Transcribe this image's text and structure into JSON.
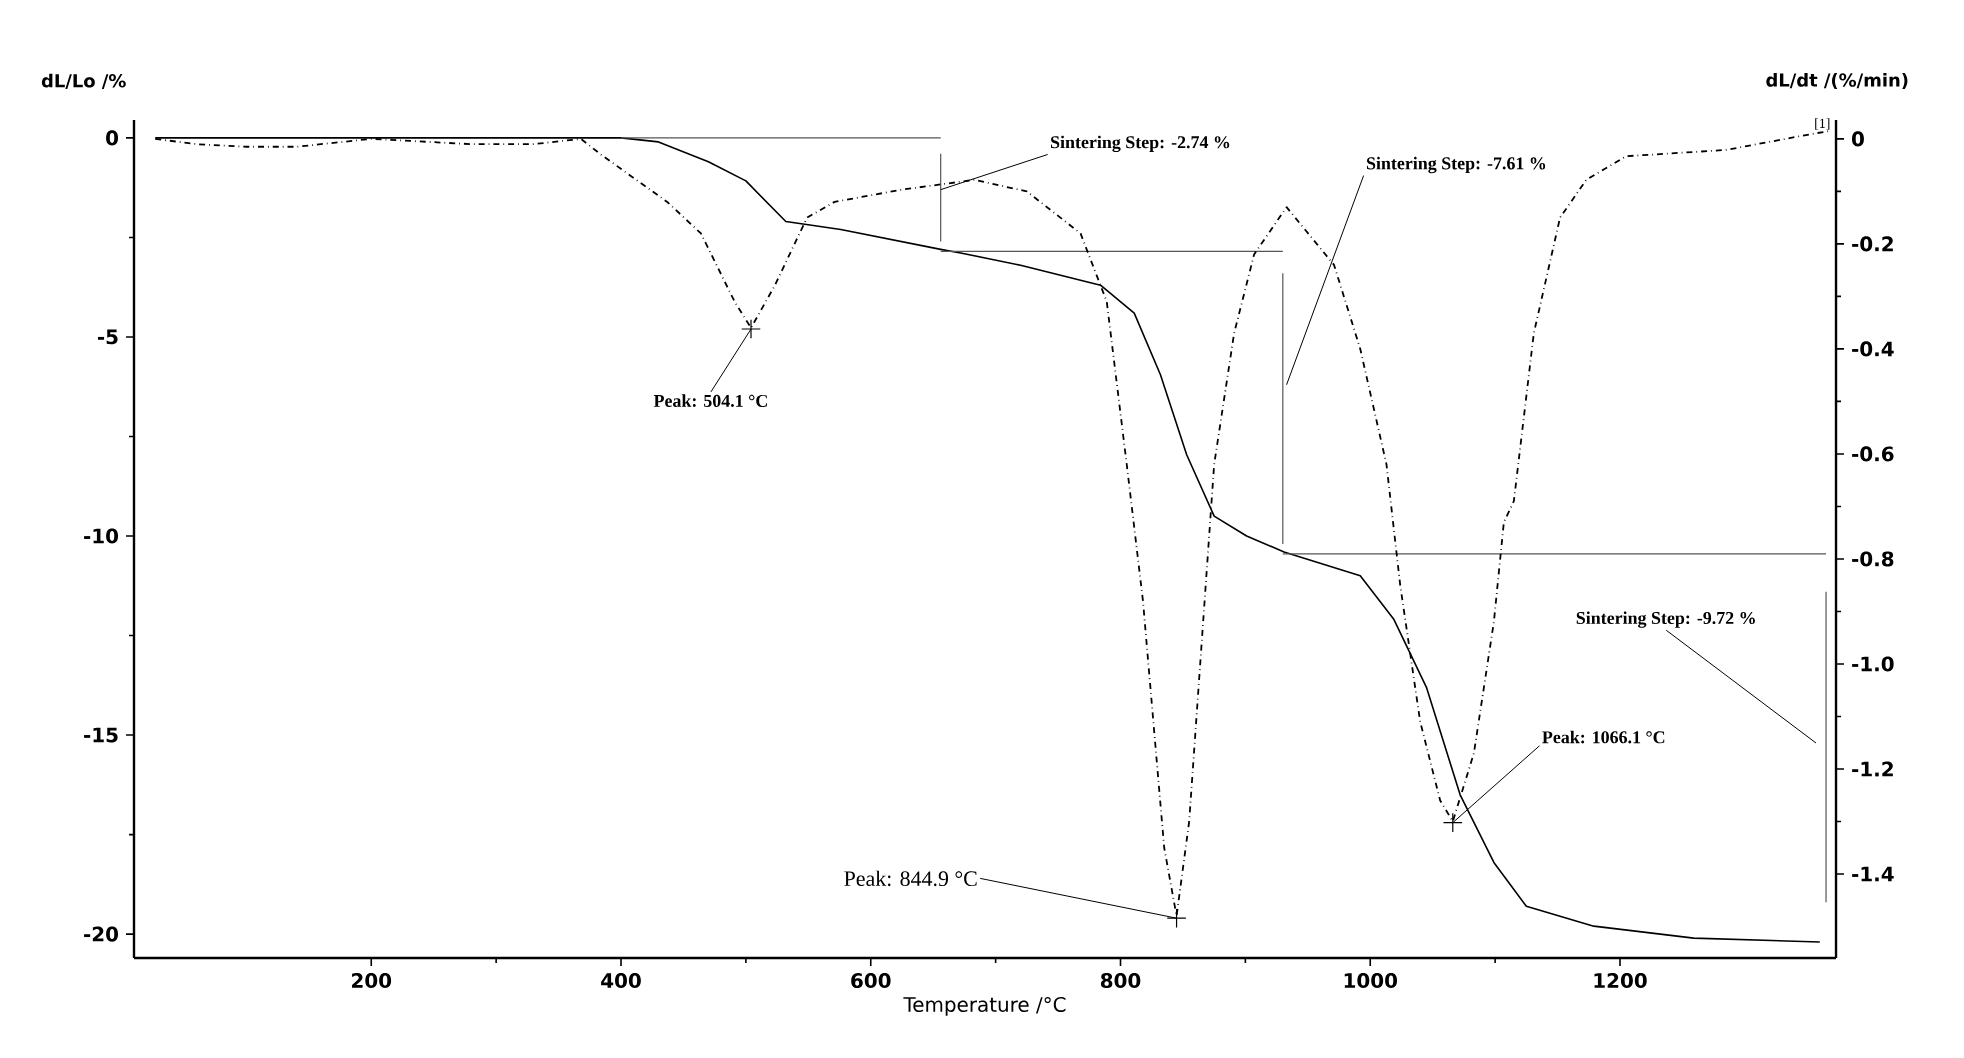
{
  "chart_data": {
    "type": "line",
    "xlabel": "Temperature /°C",
    "ylabel": "dL/Lo /%",
    "y2label": "dL/dt /(%/min)",
    "xlim": [
      10,
      1373
    ],
    "xticks": [
      200,
      400,
      600,
      800,
      1000,
      1200
    ],
    "ylim": [
      -20.6,
      0.45
    ],
    "yticks": [
      0,
      -5,
      -10,
      -15,
      -20
    ],
    "y2lim": [
      -1.56,
      0.036
    ],
    "y2ticks": [
      0,
      -0.2,
      -0.4,
      -0.6,
      -0.8,
      {
        "value": -1,
        "label": "-1.0"
      },
      -1.2,
      -1.4
    ],
    "series": [
      {
        "color": "#000000",
        "line_style": "solid",
        "x": [
          27,
          100,
          200,
          300,
          400,
          430,
          470,
          500,
          532,
          576,
          656,
          672,
          720,
          784,
          811,
          832,
          853,
          875,
          901,
          931,
          992,
          1019,
          1045,
          1072,
          1099,
          1125,
          1179,
          1259,
          1360
        ],
        "values": [
          0,
          0,
          0,
          0,
          0,
          -0.1,
          -0.6,
          -1.08,
          -2.1,
          -2.3,
          -2.8,
          -2.89,
          -3.2,
          -3.7,
          -4.4,
          -5.95,
          -7.96,
          -9.5,
          -10.0,
          -10.4,
          -11.0,
          -12.1,
          -13.8,
          -16.5,
          -18.2,
          -19.3,
          -19.8,
          -20.1,
          -20.2
        ]
      },
      {
        "color": "#000000",
        "line_style": "dashdot",
        "axis": "y2",
        "x": [
          27,
          60,
          100,
          140,
          200,
          280,
          330,
          368,
          384,
          437,
          464,
          491,
          504.1,
          523,
          549,
          571,
          624,
          683,
          725,
          768,
          789,
          805,
          818,
          835,
          844.9,
          855,
          875,
          891,
          907,
          933,
          971,
          992,
          1013,
          1024,
          1040,
          1056,
          1066.1,
          1083,
          1099,
          1107,
          1115,
          1131,
          1152,
          1173,
          1205,
          1285,
          1355,
          1368
        ],
        "values": [
          0,
          -0.01,
          -0.015,
          -0.015,
          0,
          -0.01,
          -0.01,
          0,
          -0.03,
          -0.12,
          -0.18,
          -0.31,
          -0.36,
          -0.28,
          -0.15,
          -0.12,
          -0.097,
          -0.078,
          -0.1,
          -0.18,
          -0.31,
          -0.62,
          -0.88,
          -1.35,
          -1.48,
          -1.3,
          -0.62,
          -0.37,
          -0.22,
          -0.13,
          -0.24,
          -0.4,
          -0.62,
          -0.85,
          -1.11,
          -1.26,
          -1.3,
          -1.17,
          -0.92,
          -0.73,
          -0.69,
          -0.37,
          -0.15,
          -0.078,
          -0.033,
          -0.021,
          0.01,
          0.015
        ]
      },
      {
        "color": "#555555",
        "line_style": "solid",
        "x": [
          400,
          656
        ],
        "values": [
          0,
          0
        ]
      },
      {
        "color": "#555555",
        "line_style": "solid",
        "x": [
          656,
          930
        ],
        "values": [
          -2.85,
          -2.85
        ]
      },
      {
        "color": "#555555",
        "line_style": "solid",
        "x": [
          930,
          1365
        ],
        "values": [
          -10.45,
          -10.45
        ]
      },
      {
        "color": "#555555",
        "line_style": "solid",
        "x": [
          656,
          656
        ],
        "values": [
          -0.4,
          -2.6
        ]
      },
      {
        "color": "#555555",
        "line_style": "solid",
        "x": [
          930,
          930
        ],
        "values": [
          -3.4,
          -10.2
        ]
      },
      {
        "color": "#555555",
        "line_style": "solid",
        "x": [
          1365,
          1365
        ],
        "values": [
          -11.4,
          -19.2
        ]
      }
    ],
    "annotations": [
      {
        "text": "Sintering Step: -2.74 %",
        "x": 656,
        "y": -1.3
      },
      {
        "text": "Sintering Step: -7.61 %",
        "x": 933,
        "y": -6.2
      },
      {
        "text": "Peak: 504.1 °C",
        "x": 504.1,
        "y": -4.8
      },
      {
        "text": "Peak: 844.9 °C",
        "x": 844.9,
        "y": -19.6
      },
      {
        "text": "Peak: 1066.1 °C",
        "x": 1066.1,
        "y": -17.2
      },
      {
        "text": "Sintering Step: -9.72 %",
        "x": 1357,
        "y": -15.2
      },
      "[1]"
    ]
  }
}
